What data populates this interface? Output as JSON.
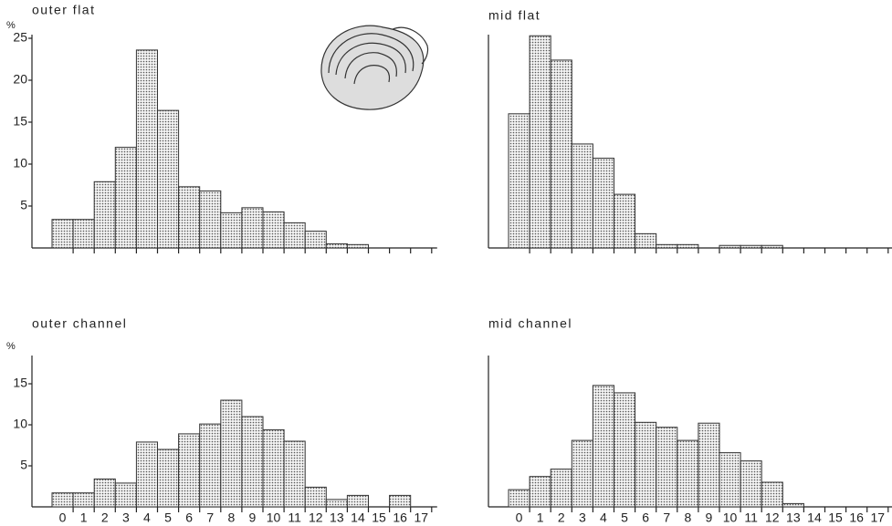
{
  "chart_data": [
    {
      "type": "bar",
      "title": "outer flat",
      "y_label": "%",
      "categories": [
        null,
        null,
        null,
        null,
        null,
        null,
        null,
        null,
        null,
        null,
        null,
        null,
        null,
        null,
        null,
        null,
        null,
        null
      ],
      "values": [
        3.4,
        3.4,
        7.9,
        12,
        23.6,
        16.4,
        7.3,
        6.8,
        4.2,
        4.8,
        4.3,
        3.0,
        2.0,
        0.5,
        0.4,
        0,
        0,
        0
      ],
      "ylim": [
        0,
        25
      ],
      "yticks": [
        5,
        10,
        15,
        20,
        25
      ]
    },
    {
      "type": "bar",
      "title": "mid flat",
      "categories": [
        null,
        null,
        null,
        null,
        null,
        null,
        null,
        null,
        null,
        null,
        null,
        null,
        null,
        null,
        null,
        null,
        null,
        null
      ],
      "values": [
        16,
        25.3,
        22.4,
        12.4,
        10.7,
        6.4,
        1.7,
        0.4,
        0.4,
        0,
        0.3,
        0.3,
        0.3,
        0,
        0,
        0,
        0,
        0
      ],
      "ylim": [
        0,
        25
      ]
    },
    {
      "type": "bar",
      "title": "outer channel",
      "y_label": "%",
      "categories": [
        "0",
        "1",
        "2",
        "3",
        "4",
        "5",
        "6",
        "7",
        "8",
        "9",
        "10",
        "11",
        "12",
        "13",
        "14",
        "15",
        "16",
        "17"
      ],
      "values": [
        1.7,
        1.7,
        3.4,
        2.9,
        7.9,
        7.0,
        8.9,
        10.1,
        13,
        11,
        9.4,
        8,
        2.4,
        0.9,
        1.4,
        0,
        1.4,
        0
      ],
      "ylim": [
        0,
        18
      ],
      "yticks": [
        5,
        10,
        15
      ]
    },
    {
      "type": "bar",
      "title": "mid channel",
      "categories": [
        "0",
        "1",
        "2",
        "3",
        "4",
        "5",
        "6",
        "7",
        "8",
        "9",
        "10",
        "11",
        "12",
        "13",
        "14",
        "15",
        "16",
        "17"
      ],
      "values": [
        2.1,
        3.7,
        4.6,
        8.1,
        14.8,
        13.9,
        10.3,
        9.7,
        8.1,
        10.2,
        6.6,
        5.6,
        3,
        0.4,
        0,
        0,
        0,
        0
      ],
      "ylim": [
        0,
        18
      ]
    }
  ]
}
